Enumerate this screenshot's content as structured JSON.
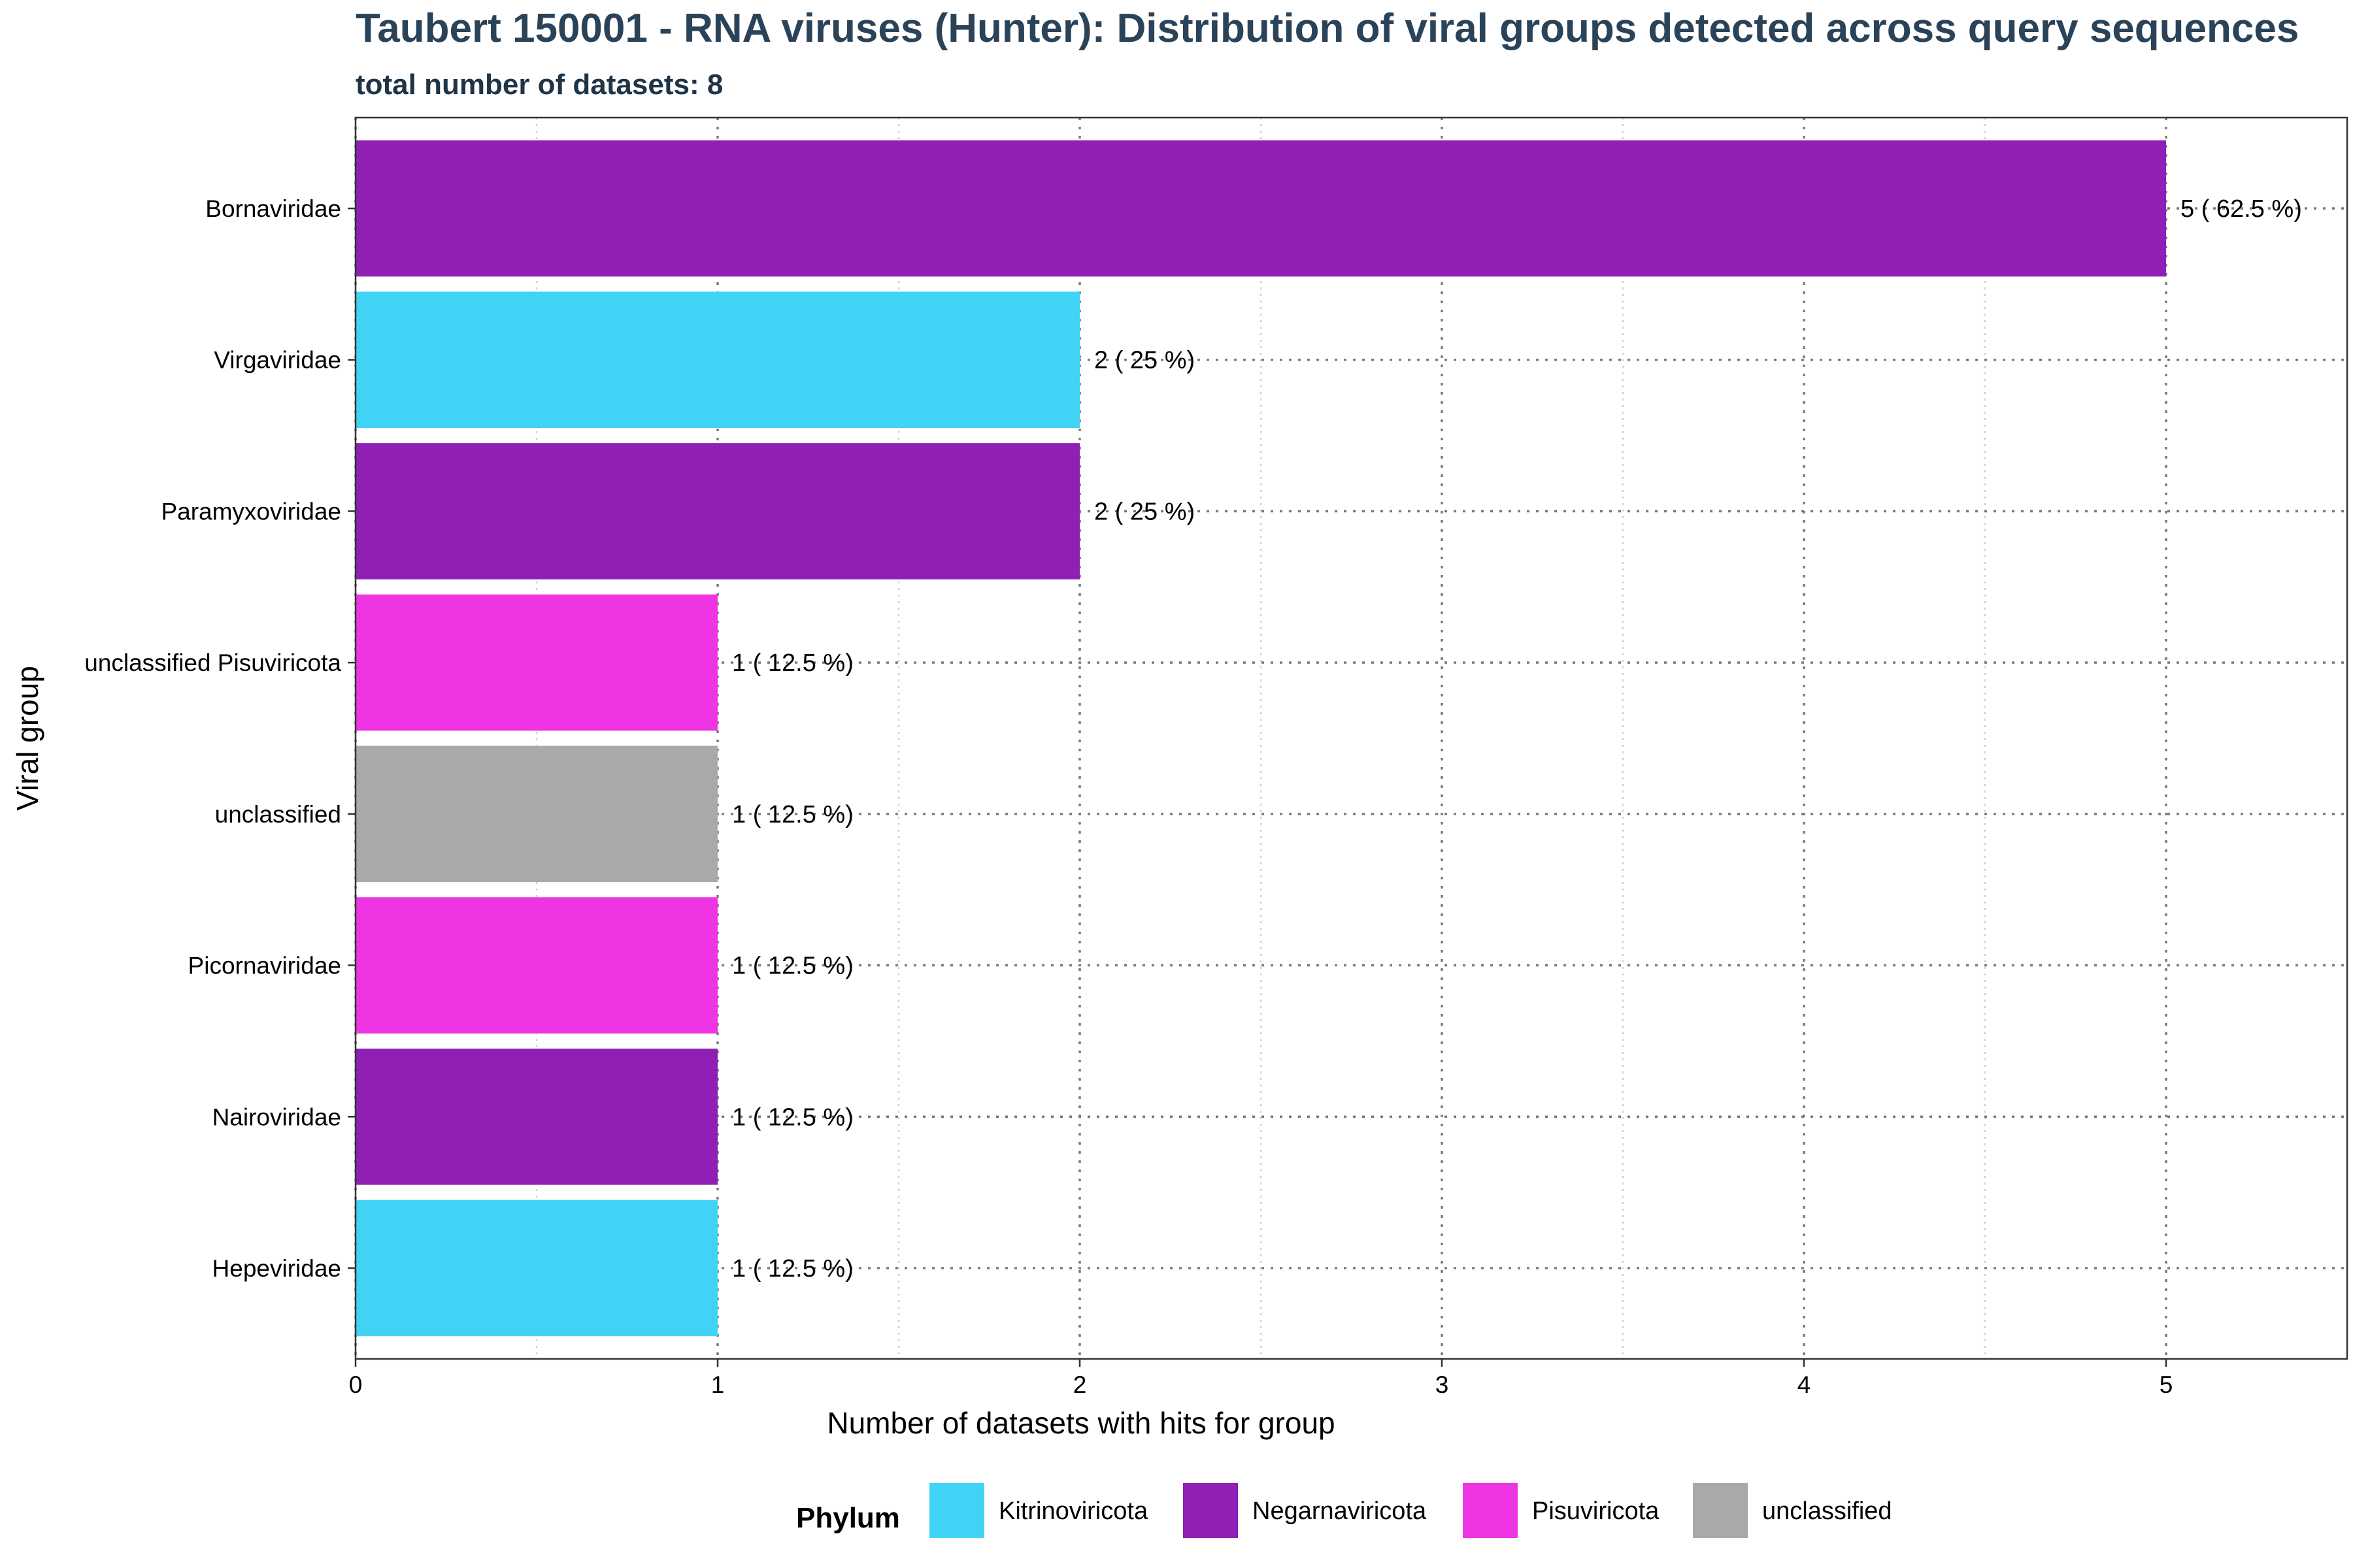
{
  "chart_data": {
    "type": "bar",
    "orientation": "horizontal",
    "title": "Taubert 150001 - RNA viruses (Hunter): Distribution of viral groups detected across query sequences",
    "subtitle": "total number of datasets: 8",
    "xlabel": "Number of datasets with hits for group",
    "ylabel": "Viral group",
    "xlim": [
      0,
      5.5
    ],
    "x_ticks": [
      0,
      1,
      2,
      3,
      4,
      5
    ],
    "grid": true,
    "legend_position": "bottom",
    "legend_title": "Phylum",
    "legend": [
      {
        "name": "Kitrinoviricota",
        "color": "#41d3f5"
      },
      {
        "name": "Negarnaviricota",
        "color": "#8f1fb5"
      },
      {
        "name": "Pisuviricota",
        "color": "#ef34e4"
      },
      {
        "name": "unclassified",
        "color": "#a9a9a9"
      }
    ],
    "categories": [
      "Bornaviridae",
      "Virgaviridae",
      "Paramyxoviridae",
      "unclassified Pisuviricota",
      "unclassified",
      "Picornaviridae",
      "Nairoviridae",
      "Hepeviridae"
    ],
    "values": [
      5,
      2,
      2,
      1,
      1,
      1,
      1,
      1
    ],
    "phylum": [
      "Negarnaviricota",
      "Kitrinoviricota",
      "Negarnaviricota",
      "Pisuviricota",
      "unclassified",
      "Pisuviricota",
      "Negarnaviricota",
      "Kitrinoviricota"
    ],
    "data_labels": [
      "5 ( 62.5 %)",
      "2 ( 25 %)",
      "2 ( 25 %)",
      "1 ( 12.5 %)",
      "1 ( 12.5 %)",
      "1 ( 12.5 %)",
      "1 ( 12.5 %)",
      "1 ( 12.5 %)"
    ]
  }
}
